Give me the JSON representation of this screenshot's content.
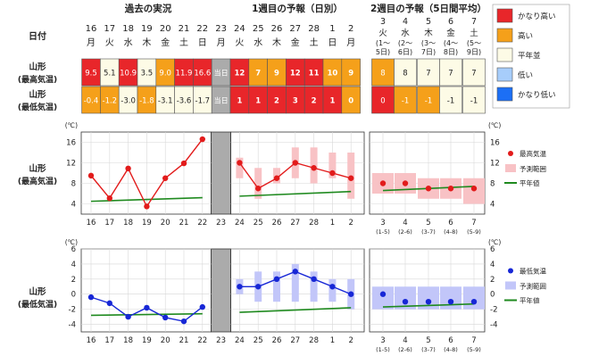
{
  "headers": {
    "past": "過去の実況",
    "week1": "1週目の予報（日別）",
    "week2": "2週目の予報（5日間平均）"
  },
  "row_labels": {
    "date": "日付",
    "max_region": "山形",
    "max_sub": "(最高気温)",
    "min_region": "山形",
    "min_sub": "(最低気温)"
  },
  "past_days": [
    {
      "d": "16",
      "w": "月"
    },
    {
      "d": "17",
      "w": "火"
    },
    {
      "d": "18",
      "w": "水"
    },
    {
      "d": "19",
      "w": "木"
    },
    {
      "d": "20",
      "w": "金"
    },
    {
      "d": "21",
      "w": "土"
    },
    {
      "d": "22",
      "w": "日"
    }
  ],
  "today": {
    "d": "23",
    "w": "月",
    "label": "当日"
  },
  "fc_days": [
    {
      "d": "24",
      "w": "火"
    },
    {
      "d": "25",
      "w": "水"
    },
    {
      "d": "26",
      "w": "木"
    },
    {
      "d": "27",
      "w": "金"
    },
    {
      "d": "28",
      "w": "土"
    },
    {
      "d": "1",
      "w": "日"
    },
    {
      "d": "2",
      "w": "月"
    }
  ],
  "w2_days": [
    {
      "d": "3",
      "w": "火",
      "r1": "(1～",
      "r2": "5日)"
    },
    {
      "d": "4",
      "w": "水",
      "r1": "(2～",
      "r2": "6日)"
    },
    {
      "d": "5",
      "w": "木",
      "r1": "(3～",
      "r2": "7日)"
    },
    {
      "d": "6",
      "w": "金",
      "r1": "(4～",
      "r2": "8日)"
    },
    {
      "d": "7",
      "w": "土",
      "r1": "(5～",
      "r2": "9日)"
    }
  ],
  "grid_values": {
    "max_past": [
      "9.5",
      "5.1",
      "10.9",
      "3.5",
      "9.0",
      "11.9",
      "16.6"
    ],
    "max_past_cls": [
      "vh",
      "n",
      "vh",
      "n",
      "h",
      "vh",
      "vh"
    ],
    "max_fc": [
      "12",
      "7",
      "9",
      "12",
      "11",
      "10",
      "9"
    ],
    "max_fc_cls": [
      "vh",
      "h",
      "h",
      "vh",
      "vh",
      "h",
      "h"
    ],
    "max_w2": [
      "8",
      "8",
      "7",
      "7",
      "7"
    ],
    "max_w2_cls": [
      "h",
      "n",
      "n",
      "n",
      "n"
    ],
    "min_past": [
      "-0.4",
      "-1.2",
      "-3.0",
      "-1.8",
      "-3.1",
      "-3.6",
      "-1.7"
    ],
    "min_past_cls": [
      "h",
      "h",
      "n",
      "h",
      "n",
      "n",
      "n"
    ],
    "min_fc": [
      "1",
      "1",
      "2",
      "3",
      "2",
      "1",
      "0"
    ],
    "min_fc_cls": [
      "vh",
      "vh",
      "vh",
      "vh",
      "vh",
      "vh",
      "h"
    ],
    "min_w2": [
      "0",
      "-1",
      "-1",
      "-1",
      "-1"
    ],
    "min_w2_cls": [
      "vh",
      "h",
      "h",
      "n",
      "n"
    ]
  },
  "legend": {
    "title_items": [
      {
        "key": "vh",
        "label": "かなり高い"
      },
      {
        "key": "h",
        "label": "高い"
      },
      {
        "key": "n",
        "label": "平年並"
      },
      {
        "key": "l",
        "label": "低い"
      },
      {
        "key": "vl",
        "label": "かなり低い"
      }
    ],
    "max_labels": [
      "最高気温",
      "予測範囲",
      "平年値"
    ],
    "min_labels": [
      "最低気温",
      "予測範囲",
      "平年値"
    ]
  },
  "colors": {
    "vh": "#e8262a",
    "h": "#f5a01a",
    "n": "#fdfbe6",
    "l": "#a7cdfb",
    "vl": "#1c6ff5",
    "today": "#ababab",
    "max_line": "#e21b1b",
    "max_range": "#f8c2c5",
    "min_line": "#1727d6",
    "min_range": "#c2c6f9",
    "normal": "#1f8a1f"
  },
  "chart_data": [
    {
      "type": "line",
      "title": "山形 (最高気温)",
      "ylabel": "(℃)",
      "ylim": [
        2,
        18
      ],
      "yticks": [
        "4",
        "8",
        "12",
        "16"
      ],
      "categories": [
        "16",
        "17",
        "18",
        "19",
        "20",
        "21",
        "22",
        "23",
        "24",
        "25",
        "26",
        "27",
        "28",
        "1",
        "2"
      ],
      "w2_categories": [
        "3",
        "4",
        "5",
        "6",
        "7"
      ],
      "w2_sub": [
        "(1-5)",
        "(2-6)",
        "(3-7)",
        "(4-8)",
        "(5-9)"
      ],
      "observed": [
        9.5,
        5.1,
        10.9,
        3.5,
        9.0,
        11.9,
        16.6
      ],
      "forecast": [
        12,
        7,
        9,
        12,
        11,
        10,
        9
      ],
      "forecast_range": [
        [
          9,
          13
        ],
        [
          5,
          11
        ],
        [
          8,
          11
        ],
        [
          9,
          15
        ],
        [
          8,
          15
        ],
        [
          9,
          14
        ],
        [
          5,
          14
        ]
      ],
      "normal_past": [
        4.5,
        5.2
      ],
      "normal_fc": [
        5.5,
        6.4
      ],
      "w2_forecast": [
        8,
        8,
        7,
        7,
        7
      ],
      "w2_range": [
        [
          6,
          10
        ],
        [
          6,
          10
        ],
        [
          5,
          9
        ],
        [
          5,
          9
        ],
        [
          4,
          9
        ]
      ],
      "w2_normal": [
        6.6,
        7.4
      ]
    },
    {
      "type": "line",
      "title": "山形 (最低気温)",
      "ylabel": "(℃)",
      "ylim": [
        -5,
        6
      ],
      "yticks": [
        "-4",
        "-2",
        "0",
        "2",
        "4",
        "6"
      ],
      "categories": [
        "16",
        "17",
        "18",
        "19",
        "20",
        "21",
        "22",
        "23",
        "24",
        "25",
        "26",
        "27",
        "28",
        "1",
        "2"
      ],
      "w2_categories": [
        "3",
        "4",
        "5",
        "6",
        "7"
      ],
      "w2_sub": [
        "(1-5)",
        "(2-6)",
        "(3-7)",
        "(4-8)",
        "(5-9)"
      ],
      "observed": [
        -0.4,
        -1.2,
        -3.0,
        -1.8,
        -3.1,
        -3.6,
        -1.7
      ],
      "forecast": [
        1,
        1,
        2,
        3,
        2,
        1,
        0
      ],
      "forecast_range": [
        [
          0,
          2
        ],
        [
          -1,
          3
        ],
        [
          -1,
          3
        ],
        [
          -1,
          4
        ],
        [
          -1,
          3
        ],
        [
          -1,
          2
        ],
        [
          -2,
          2
        ]
      ],
      "normal_past": [
        -2.8,
        -2.6
      ],
      "normal_fc": [
        -2.4,
        -1.8
      ],
      "w2_forecast": [
        0,
        -1,
        -1,
        -1,
        -1
      ],
      "w2_range": [
        [
          -2,
          1
        ],
        [
          -2,
          1
        ],
        [
          -2,
          1
        ],
        [
          -2,
          1
        ],
        [
          -2,
          1
        ]
      ],
      "w2_normal": [
        -1.7,
        -1.3
      ]
    }
  ]
}
